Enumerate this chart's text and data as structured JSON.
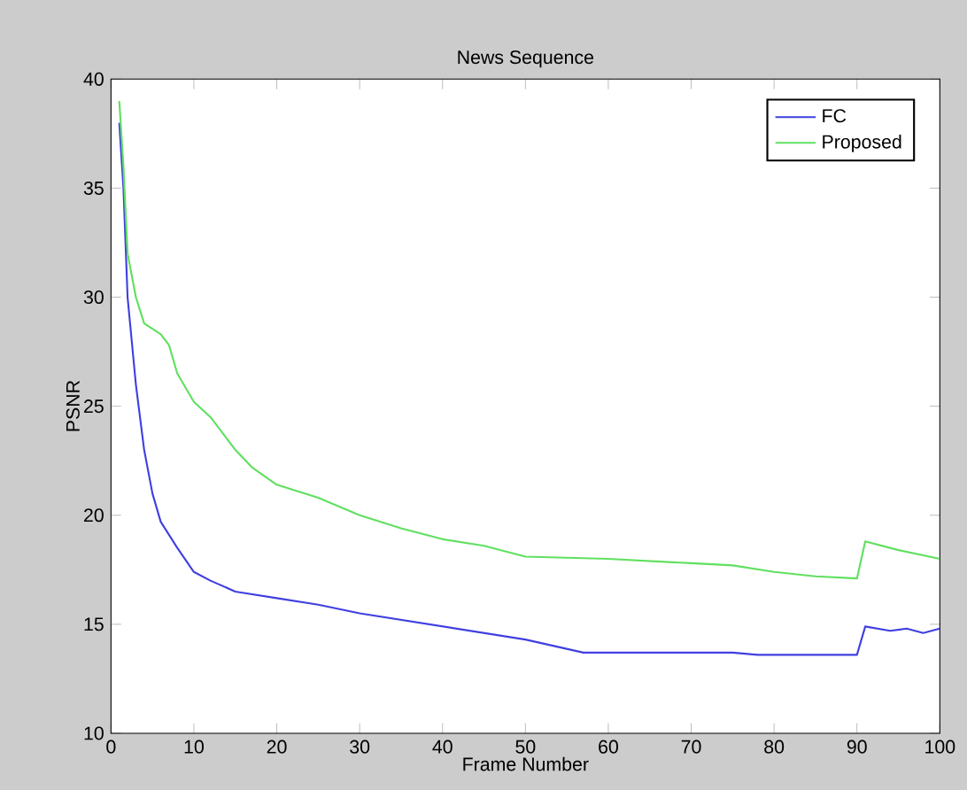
{
  "chart_data": {
    "type": "line",
    "title": "News Sequence",
    "xlabel": "Frame Number",
    "ylabel": "PSNR",
    "xlim": [
      0,
      100
    ],
    "ylim": [
      10,
      40
    ],
    "xticks": [
      0,
      10,
      20,
      30,
      40,
      50,
      60,
      70,
      80,
      90,
      100
    ],
    "yticks": [
      10,
      15,
      20,
      25,
      30,
      35,
      40
    ],
    "legend": "top right",
    "grid": false,
    "series": [
      {
        "name": "FC",
        "color": "#4040e0",
        "x": [
          1,
          1.5,
          2,
          3,
          4,
          5,
          6,
          8,
          10,
          12,
          15,
          20,
          25,
          30,
          40,
          50,
          57,
          60,
          75,
          78,
          90,
          91,
          94,
          96,
          98,
          100
        ],
        "values": [
          38,
          35,
          30,
          26,
          23,
          21,
          19.7,
          18.5,
          17.4,
          17,
          16.5,
          16.2,
          15.9,
          15.5,
          14.9,
          14.3,
          13.7,
          13.7,
          13.7,
          13.6,
          13.6,
          14.9,
          14.7,
          14.8,
          14.6,
          14.8
        ]
      },
      {
        "name": "Proposed",
        "color": "#60e060",
        "x": [
          1,
          1.5,
          2,
          3,
          4,
          6,
          7,
          8,
          10,
          12,
          15,
          17,
          20,
          25,
          30,
          35,
          40,
          45,
          50,
          60,
          70,
          75,
          80,
          85,
          90,
          91,
          95,
          100
        ],
        "values": [
          39,
          36,
          32,
          30,
          28.8,
          28.3,
          27.8,
          26.5,
          25.2,
          24.5,
          23,
          22.2,
          21.4,
          20.8,
          20,
          19.4,
          18.9,
          18.6,
          18.1,
          18,
          17.8,
          17.7,
          17.4,
          17.2,
          17.1,
          18.8,
          18.4,
          18
        ]
      }
    ]
  }
}
